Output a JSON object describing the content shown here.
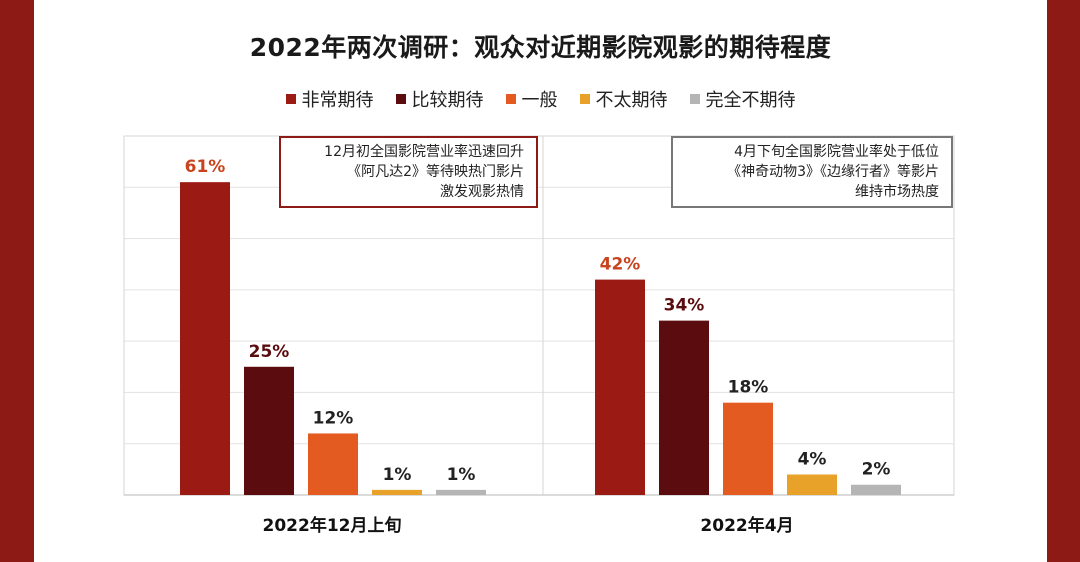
{
  "chart_data": {
    "type": "bar",
    "title": "2022年两次调研：观众对近期影院观影的期待程度",
    "categories": [
      "2022年12月上旬",
      "2022年4月"
    ],
    "series": [
      {
        "name": "非常期待",
        "color": "#9b1b14",
        "values": [
          61,
          42
        ],
        "value_labels": [
          "61%",
          "42%"
        ],
        "label_color": "#c8441e"
      },
      {
        "name": "比较期待",
        "color": "#5a0c0e",
        "values": [
          25,
          34
        ],
        "value_labels": [
          "25%",
          "34%"
        ],
        "label_color": "#5a0c0e"
      },
      {
        "name": "一般",
        "color": "#e35b21",
        "values": [
          12,
          18
        ],
        "value_labels": [
          "12%",
          "18%"
        ],
        "label_color": "#222222"
      },
      {
        "name": "不太期待",
        "color": "#e8a22a",
        "values": [
          1,
          4
        ],
        "value_labels": [
          "1%",
          "4%"
        ],
        "label_color": "#222222"
      },
      {
        "name": "完全不期待",
        "color": "#b5b5b5",
        "values": [
          1,
          2
        ],
        "value_labels": [
          "1%",
          "2%"
        ],
        "label_color": "#222222"
      }
    ],
    "ylim": [
      0,
      70
    ],
    "grid": true,
    "legend_position": "top",
    "annotations": [
      [
        "12月初全国影院营业率迅速回升",
        "《阿凡达2》等待映热门影片",
        "激发观影热情"
      ],
      [
        "4月下旬全国影院营业率处于低位",
        "《神奇动物3》《边缘行者》等影片",
        "维持市场热度"
      ]
    ]
  }
}
